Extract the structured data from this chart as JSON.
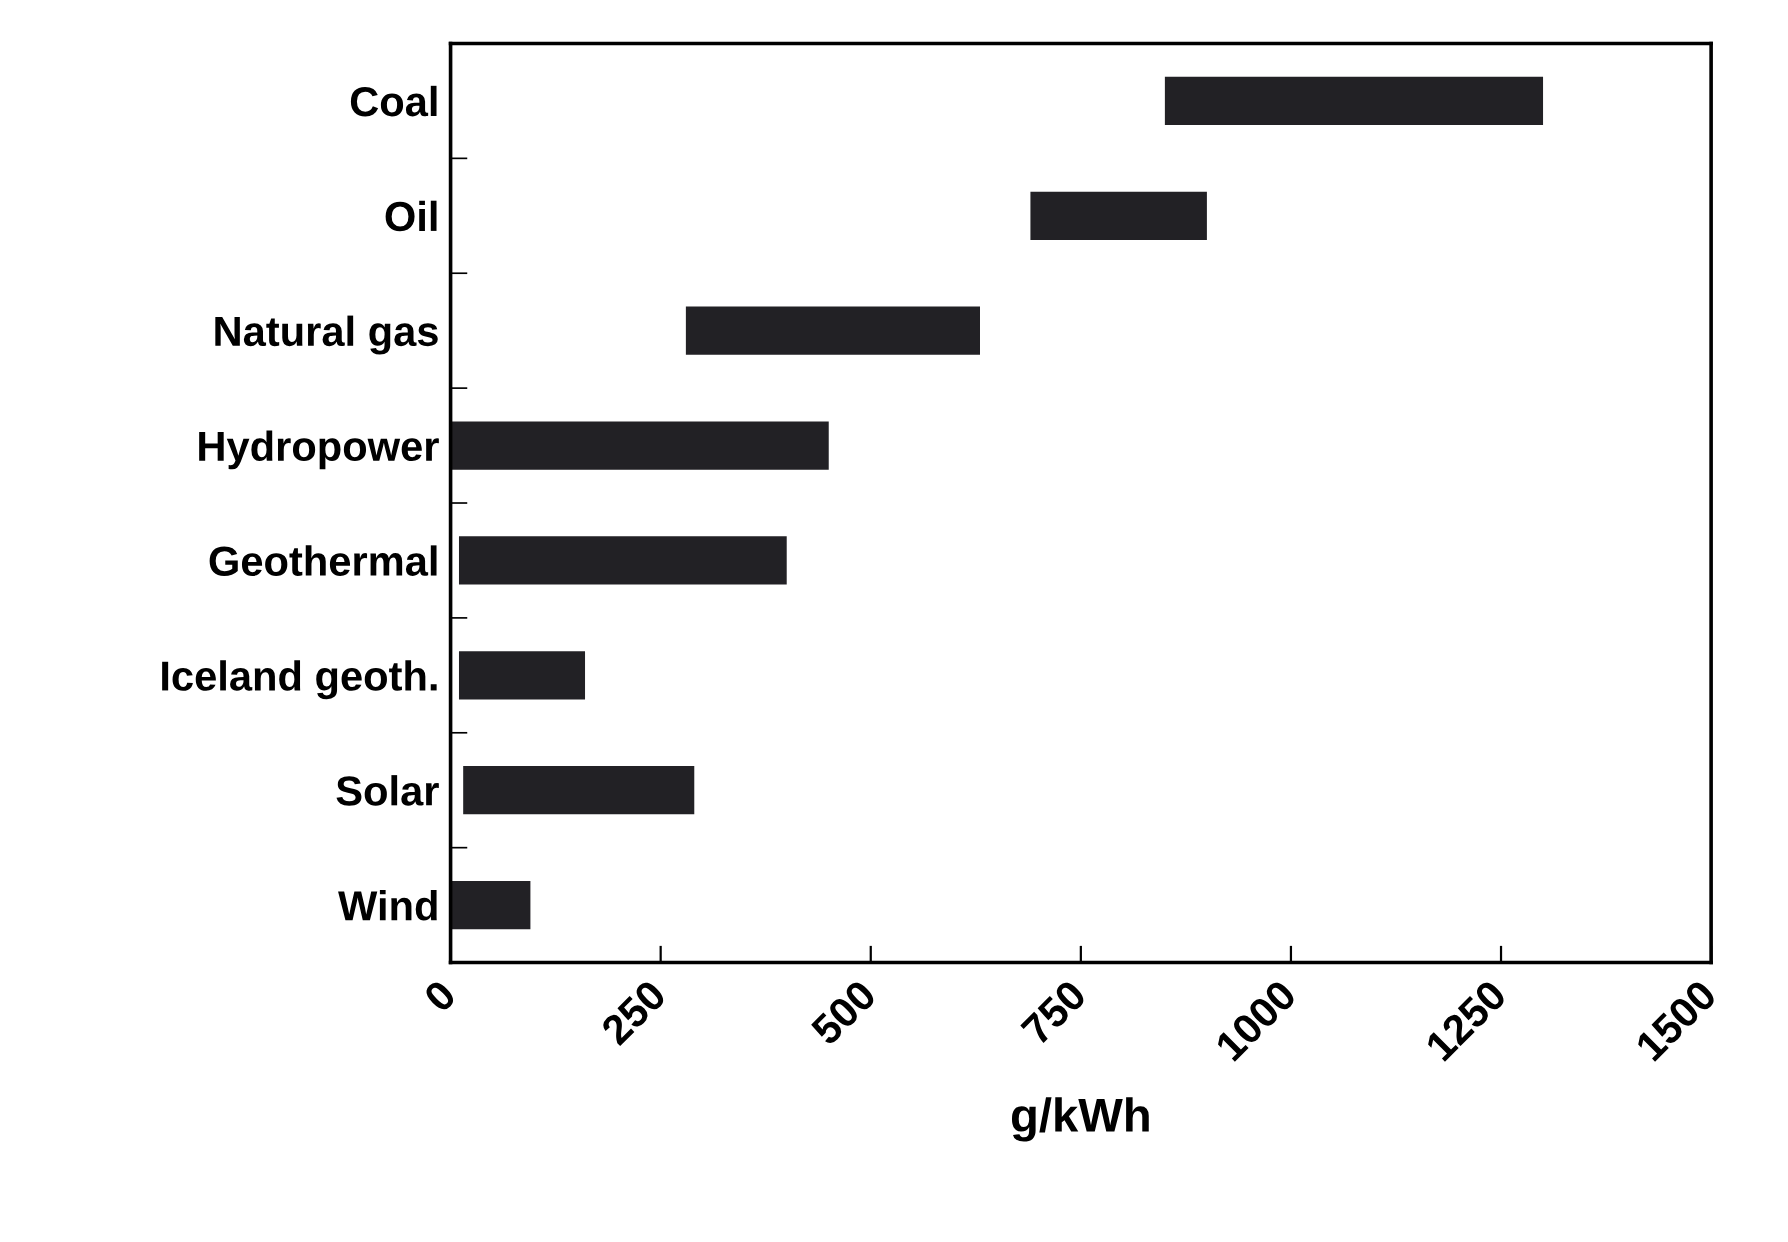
{
  "chart_data": {
    "type": "bar",
    "orientation": "horizontal",
    "xlabel": "g/kWh",
    "categories": [
      "Coal",
      "Oil",
      "Natural gas",
      "Hydropower",
      "Geothermal",
      "Iceland geoth.",
      "Solar",
      "Wind"
    ],
    "base": [
      850,
      690,
      280,
      0,
      10,
      10,
      15,
      0
    ],
    "values": [
      450,
      210,
      350,
      450,
      390,
      150,
      275,
      95
    ],
    "color": "#222125",
    "xlim": [
      0,
      1500
    ],
    "xticks": [
      0,
      250,
      500,
      750,
      1000,
      1250,
      1500
    ],
    "grid": false
  }
}
